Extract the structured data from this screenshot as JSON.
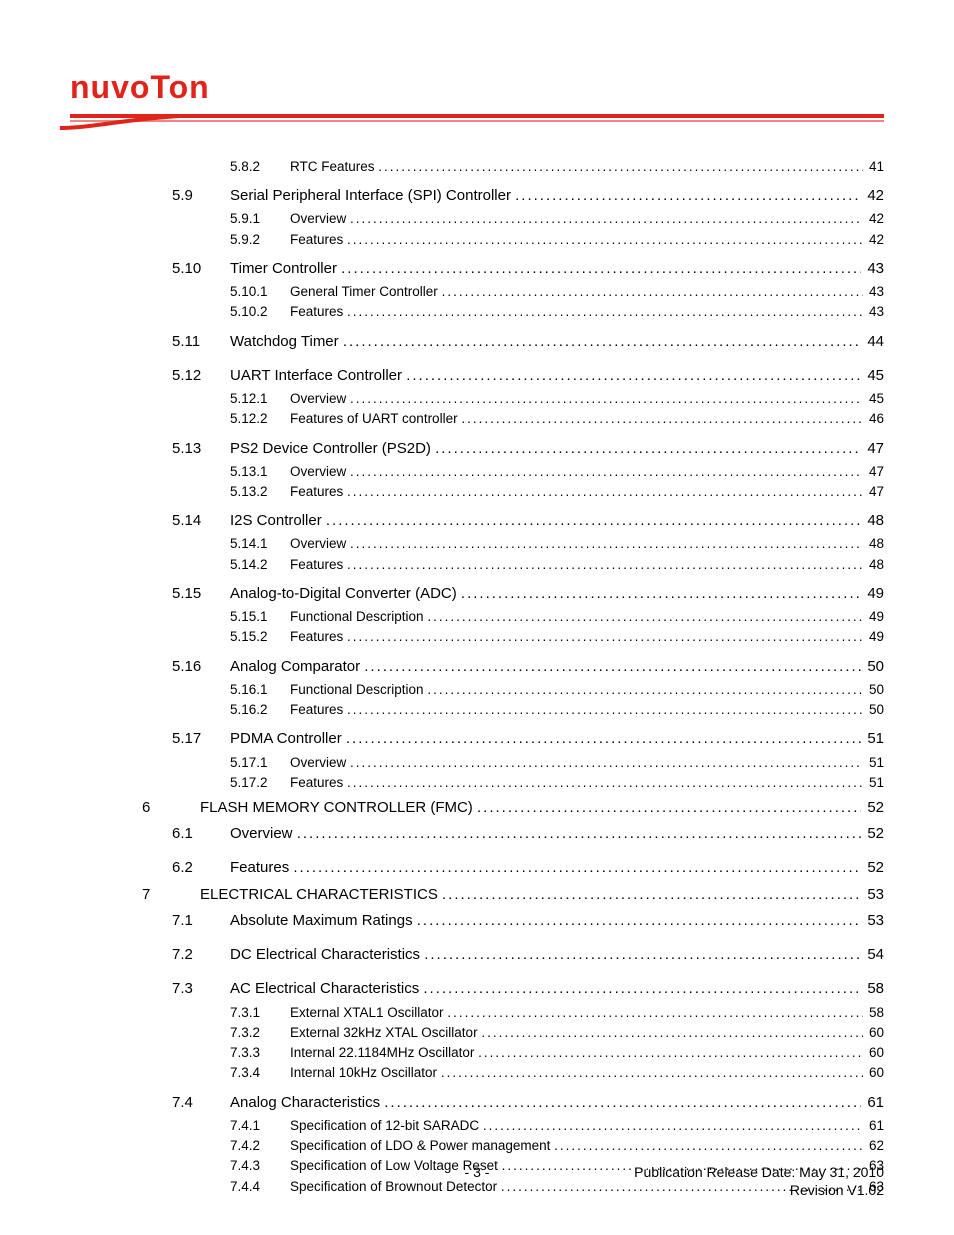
{
  "brand": {
    "name": "nuvoTon",
    "color": "#e2231a"
  },
  "footer": {
    "page_number": "- 3 -",
    "pub_line": "Publication Release Date: May 31, 2010",
    "rev_line": "Revision V1.02"
  },
  "toc": [
    {
      "level": 3,
      "num": "5.8.2",
      "title": "RTC Features",
      "page": "41"
    },
    {
      "level": 2,
      "num": "5.9",
      "title": "Serial Peripheral Interface (SPI) Controller",
      "page": "42"
    },
    {
      "level": 3,
      "num": "5.9.1",
      "title": "Overview",
      "page": "42"
    },
    {
      "level": 3,
      "num": "5.9.2",
      "title": "Features",
      "page": "42"
    },
    {
      "level": 2,
      "num": "5.10",
      "title": "Timer Controller",
      "page": "43"
    },
    {
      "level": 3,
      "num": "5.10.1",
      "title": "General Timer Controller",
      "page": "43"
    },
    {
      "level": 3,
      "num": "5.10.2",
      "title": "Features",
      "page": "43"
    },
    {
      "level": 2,
      "num": "5.11",
      "title": "Watchdog Timer",
      "page": "44"
    },
    {
      "level": 2,
      "num": "5.12",
      "title": "UART Interface Controller",
      "page": "45"
    },
    {
      "level": 3,
      "num": "5.12.1",
      "title": "Overview",
      "page": "45"
    },
    {
      "level": 3,
      "num": "5.12.2",
      "title": "Features of UART controller",
      "page": "46"
    },
    {
      "level": 2,
      "num": "5.13",
      "title": "PS2 Device Controller (PS2D)",
      "page": "47"
    },
    {
      "level": 3,
      "num": "5.13.1",
      "title": "Overview",
      "page": "47"
    },
    {
      "level": 3,
      "num": "5.13.2",
      "title": "Features",
      "page": "47"
    },
    {
      "level": 2,
      "num": "5.14",
      "title": "I2S Controller",
      "page": "48"
    },
    {
      "level": 3,
      "num": "5.14.1",
      "title": "Overview",
      "page": "48"
    },
    {
      "level": 3,
      "num": "5.14.2",
      "title": "Features",
      "page": "48"
    },
    {
      "level": 2,
      "num": "5.15",
      "title": "Analog-to-Digital Converter (ADC)",
      "page": "49"
    },
    {
      "level": 3,
      "num": "5.15.1",
      "title": "Functional Description",
      "page": "49"
    },
    {
      "level": 3,
      "num": "5.15.2",
      "title": "Features",
      "page": "49"
    },
    {
      "level": 2,
      "num": "5.16",
      "title": "Analog Comparator",
      "page": "50"
    },
    {
      "level": 3,
      "num": "5.16.1",
      "title": "Functional Description",
      "page": "50"
    },
    {
      "level": 3,
      "num": "5.16.2",
      "title": "Features",
      "page": "50"
    },
    {
      "level": 2,
      "num": "5.17",
      "title": "PDMA Controller",
      "page": "51"
    },
    {
      "level": 3,
      "num": "5.17.1",
      "title": "Overview",
      "page": "51"
    },
    {
      "level": 3,
      "num": "5.17.2",
      "title": "Features",
      "page": "51"
    },
    {
      "level": 1,
      "num": "6",
      "title": "FLASH MEMORY CONTROLLER (FMC)",
      "page": "52"
    },
    {
      "level": 2,
      "num": "6.1",
      "title": "Overview",
      "page": "52"
    },
    {
      "level": 2,
      "num": "6.2",
      "title": "Features",
      "page": "52"
    },
    {
      "level": 1,
      "num": "7",
      "title": "ELECTRICAL CHARACTERISTICS",
      "page": "53"
    },
    {
      "level": 2,
      "num": "7.1",
      "title": "Absolute Maximum Ratings",
      "page": "53"
    },
    {
      "level": 2,
      "num": "7.2",
      "title": "DC Electrical Characteristics",
      "page": "54"
    },
    {
      "level": 2,
      "num": "7.3",
      "title": "AC Electrical Characteristics",
      "page": "58"
    },
    {
      "level": 3,
      "num": "7.3.1",
      "title": "External XTAL1 Oscillator",
      "page": "58"
    },
    {
      "level": 3,
      "num": "7.3.2",
      "title": "External 32kHz XTAL Oscillator",
      "page": "60"
    },
    {
      "level": 3,
      "num": "7.3.3",
      "title": "Internal 22.1184MHz Oscillator",
      "page": "60"
    },
    {
      "level": 3,
      "num": "7.3.4",
      "title": "Internal 10kHz Oscillator",
      "page": "60"
    },
    {
      "level": 2,
      "num": "7.4",
      "title": "Analog Characteristics",
      "page": "61"
    },
    {
      "level": 3,
      "num": "7.4.1",
      "title": "Specification of 12-bit SARADC",
      "page": "61"
    },
    {
      "level": 3,
      "num": "7.4.2",
      "title": "Specification of LDO & Power management",
      "page": "62"
    },
    {
      "level": 3,
      "num": "7.4.3",
      "title": "Specification of Low Voltage Reset",
      "page": "63"
    },
    {
      "level": 3,
      "num": "7.4.4",
      "title": "Specification of Brownout Detector",
      "page": "63"
    }
  ]
}
